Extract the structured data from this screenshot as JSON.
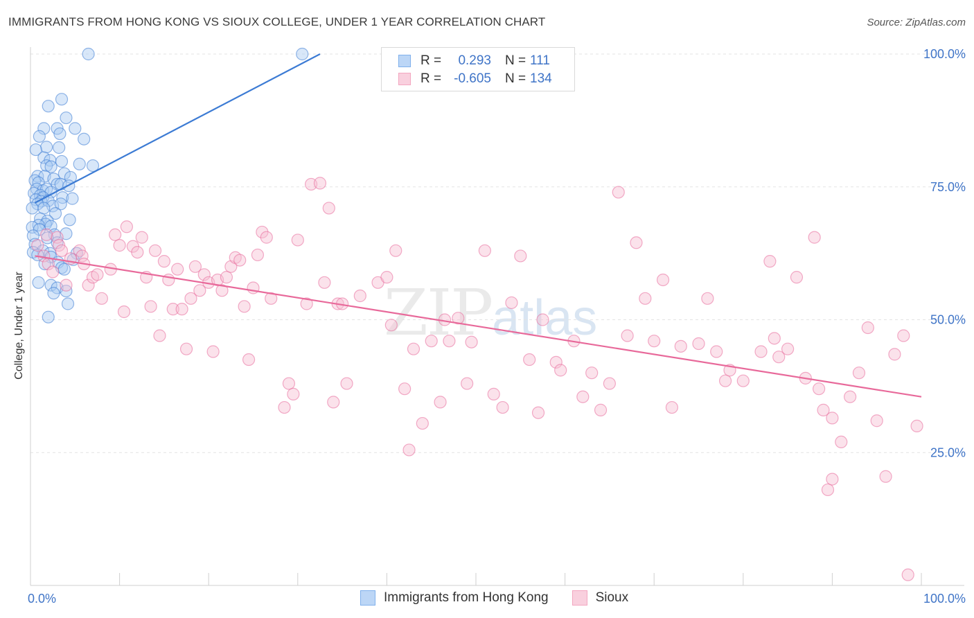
{
  "header": {
    "title": "IMMIGRANTS FROM HONG KONG VS SIOUX COLLEGE, UNDER 1 YEAR CORRELATION CHART",
    "source": "Source: ZipAtlas.com"
  },
  "watermark": {
    "zip": "ZIP",
    "atlas": "atlas"
  },
  "legend": {
    "rows": [
      {
        "r_label": "R =",
        "r_value": "0.293",
        "n_label": "N =",
        "n_value": "111",
        "color": "#7fb0ec"
      },
      {
        "r_label": "R =",
        "r_value": "-0.605",
        "n_label": "N =",
        "n_value": "134",
        "color": "#f3a6c0"
      }
    ]
  },
  "bottom_legend": {
    "items": [
      {
        "label": "Immigrants from Hong Kong",
        "color": "#7fb0ec"
      },
      {
        "label": "Sioux",
        "color": "#f3a6c0"
      }
    ]
  },
  "chart_data": {
    "type": "scatter",
    "title": "IMMIGRANTS FROM HONG KONG VS SIOUX COLLEGE, UNDER 1 YEAR CORRELATION CHART",
    "xlabel": "",
    "ylabel": "College, Under 1 year",
    "xlim": [
      0,
      100
    ],
    "ylim": [
      0,
      100
    ],
    "x_tick_labels": [
      "0.0%",
      "100.0%"
    ],
    "y_tick_labels": [
      "25.0%",
      "50.0%",
      "75.0%",
      "100.0%"
    ],
    "y_ticks": [
      25,
      50,
      75,
      100
    ],
    "grid": true,
    "series": [
      {
        "name": "Immigrants from Hong Kong",
        "color": "#3c7bd4",
        "fill": "#a9c9f2",
        "trend": {
          "x": [
            0.5,
            32.5
          ],
          "y": [
            72,
            100
          ]
        },
        "points": [
          [
            6.5,
            100
          ],
          [
            30.5,
            100
          ],
          [
            3.5,
            91.5
          ],
          [
            2,
            90.2
          ],
          [
            4,
            88
          ],
          [
            1.5,
            86
          ],
          [
            3,
            86
          ],
          [
            5,
            86
          ],
          [
            1,
            84.5
          ],
          [
            3.3,
            85
          ],
          [
            6,
            84
          ],
          [
            1.8,
            82.5
          ],
          [
            3.2,
            82.4
          ],
          [
            0.6,
            82
          ],
          [
            1.5,
            80.5
          ],
          [
            2.2,
            80
          ],
          [
            3.5,
            79.8
          ],
          [
            5.5,
            79.3
          ],
          [
            7,
            79
          ],
          [
            1.8,
            79
          ],
          [
            2.3,
            78.8
          ],
          [
            3.8,
            77.5
          ],
          [
            0.8,
            77
          ],
          [
            1.6,
            77
          ],
          [
            2.6,
            76.5
          ],
          [
            4.5,
            76.8
          ],
          [
            0.5,
            76.2
          ],
          [
            0.9,
            75.8
          ],
          [
            3,
            75.5
          ],
          [
            3.4,
            75.5
          ],
          [
            4.3,
            75.2
          ],
          [
            0.7,
            74.6
          ],
          [
            1.4,
            74.3
          ],
          [
            1.8,
            74.6
          ],
          [
            2.3,
            74
          ],
          [
            0.4,
            73.8
          ],
          [
            1.1,
            73.4
          ],
          [
            1.4,
            73
          ],
          [
            3.6,
            73
          ],
          [
            4.7,
            72.8
          ],
          [
            0.6,
            72.6
          ],
          [
            1.2,
            72.3
          ],
          [
            2,
            72.4
          ],
          [
            0.8,
            71.8
          ],
          [
            2.5,
            71.4
          ],
          [
            3.4,
            71.8
          ],
          [
            1.5,
            71
          ],
          [
            0.2,
            71
          ],
          [
            2.8,
            70
          ],
          [
            1.1,
            69
          ],
          [
            4.4,
            68.8
          ],
          [
            1.9,
            68.6
          ],
          [
            1.7,
            68
          ],
          [
            0.9,
            67.8
          ],
          [
            2.3,
            67.6
          ],
          [
            0.2,
            67.4
          ],
          [
            1,
            67
          ],
          [
            4,
            66.2
          ],
          [
            2.7,
            66
          ],
          [
            0.3,
            65.8
          ],
          [
            1.9,
            65.4
          ],
          [
            3,
            64.5
          ],
          [
            0.5,
            64.2
          ],
          [
            1.4,
            63
          ],
          [
            0.3,
            62.7
          ],
          [
            2.2,
            62.5
          ],
          [
            5.2,
            62.5
          ],
          [
            0.8,
            62.2
          ],
          [
            2.3,
            61.8
          ],
          [
            4.8,
            61.3
          ],
          [
            3.1,
            60.8
          ],
          [
            1.6,
            60.5
          ],
          [
            3.5,
            59.8
          ],
          [
            3.8,
            59.5
          ],
          [
            0.9,
            57
          ],
          [
            2.3,
            56.5
          ],
          [
            3,
            56
          ],
          [
            2.6,
            55
          ],
          [
            4,
            55.4
          ],
          [
            4.2,
            53
          ],
          [
            2,
            50.5
          ]
        ]
      },
      {
        "name": "Sioux",
        "color": "#e8699a",
        "fill": "#f6bed2",
        "trend": {
          "x": [
            0.5,
            100
          ],
          "y": [
            62,
            35.5
          ]
        },
        "points": [
          [
            0.8,
            64
          ],
          [
            1.5,
            62
          ],
          [
            1.8,
            66
          ],
          [
            2,
            60.5
          ],
          [
            2.5,
            59
          ],
          [
            3,
            65.5
          ],
          [
            3.2,
            64
          ],
          [
            3.5,
            63
          ],
          [
            4,
            56.5
          ],
          [
            4.5,
            61.5
          ],
          [
            5.5,
            63
          ],
          [
            5.8,
            62
          ],
          [
            6,
            60.5
          ],
          [
            6.5,
            56.5
          ],
          [
            7,
            58
          ],
          [
            7.5,
            58.5
          ],
          [
            8,
            54
          ],
          [
            9,
            59.5
          ],
          [
            9.5,
            66
          ],
          [
            10,
            64
          ],
          [
            10.5,
            51.5
          ],
          [
            10.8,
            67.5
          ],
          [
            11.5,
            63.8
          ],
          [
            12,
            62.7
          ],
          [
            12.5,
            65.5
          ],
          [
            13,
            58
          ],
          [
            13.5,
            52.5
          ],
          [
            14,
            63
          ],
          [
            14.5,
            47
          ],
          [
            15,
            61
          ],
          [
            15.5,
            57.5
          ],
          [
            16,
            52
          ],
          [
            16.5,
            59.5
          ],
          [
            17,
            52
          ],
          [
            17.5,
            44.5
          ],
          [
            18,
            54
          ],
          [
            18.5,
            60
          ],
          [
            19,
            55.5
          ],
          [
            19.5,
            58.5
          ],
          [
            20,
            57
          ],
          [
            20.5,
            44
          ],
          [
            21,
            57.5
          ],
          [
            21.5,
            55.5
          ],
          [
            22,
            58
          ],
          [
            22.5,
            60
          ],
          [
            23,
            61.7
          ],
          [
            23.5,
            61.2
          ],
          [
            24,
            52.5
          ],
          [
            24.5,
            42.5
          ],
          [
            25,
            56
          ],
          [
            25.5,
            62.2
          ],
          [
            26,
            66.5
          ],
          [
            26.5,
            65.5
          ],
          [
            27,
            54
          ],
          [
            29,
            38
          ],
          [
            29.5,
            36
          ],
          [
            28.5,
            33.5
          ],
          [
            30,
            65
          ],
          [
            31,
            53
          ],
          [
            31.5,
            75.5
          ],
          [
            32.5,
            75.7
          ],
          [
            33,
            57
          ],
          [
            33.5,
            71
          ],
          [
            34,
            34.5
          ],
          [
            34.5,
            53
          ],
          [
            35,
            53
          ],
          [
            35.5,
            38
          ],
          [
            37,
            54.5
          ],
          [
            39,
            57
          ],
          [
            40,
            58
          ],
          [
            40.5,
            49
          ],
          [
            41,
            63
          ],
          [
            42,
            37
          ],
          [
            42.5,
            25.5
          ],
          [
            43,
            44.5
          ],
          [
            44,
            30.5
          ],
          [
            45,
            46
          ],
          [
            46,
            34.5
          ],
          [
            46.5,
            50
          ],
          [
            47,
            46
          ],
          [
            48,
            50.3
          ],
          [
            49,
            38
          ],
          [
            49.5,
            45.8
          ],
          [
            51,
            63
          ],
          [
            52,
            36
          ],
          [
            53,
            33.5
          ],
          [
            54,
            53.2
          ],
          [
            55,
            62
          ],
          [
            56,
            42.5
          ],
          [
            57,
            32.5
          ],
          [
            57.5,
            50
          ],
          [
            59,
            42
          ],
          [
            59.5,
            40.5
          ],
          [
            61,
            46
          ],
          [
            62,
            35.5
          ],
          [
            63,
            40
          ],
          [
            64,
            33
          ],
          [
            65,
            38
          ],
          [
            66,
            74
          ],
          [
            67,
            47
          ],
          [
            68,
            64.5
          ],
          [
            69,
            54
          ],
          [
            70,
            46
          ],
          [
            71,
            57.5
          ],
          [
            72,
            33.5
          ],
          [
            73,
            45
          ],
          [
            75,
            45.5
          ],
          [
            76,
            54
          ],
          [
            77,
            44
          ],
          [
            78,
            38.5
          ],
          [
            78.5,
            40.5
          ],
          [
            80,
            38.5
          ],
          [
            82,
            44
          ],
          [
            83,
            61
          ],
          [
            83.5,
            46.5
          ],
          [
            84,
            43
          ],
          [
            85,
            44.5
          ],
          [
            86,
            58
          ],
          [
            87,
            39
          ],
          [
            88,
            65.5
          ],
          [
            88.5,
            37
          ],
          [
            89,
            33
          ],
          [
            89.5,
            18
          ],
          [
            90,
            31.5
          ],
          [
            90,
            20
          ],
          [
            91,
            27
          ],
          [
            92,
            35.5
          ],
          [
            93,
            40
          ],
          [
            94,
            48.5
          ],
          [
            95,
            31
          ],
          [
            96,
            20.5
          ],
          [
            97,
            43.5
          ],
          [
            98,
            47
          ],
          [
            98.5,
            2
          ],
          [
            99.5,
            30
          ]
        ]
      }
    ]
  }
}
